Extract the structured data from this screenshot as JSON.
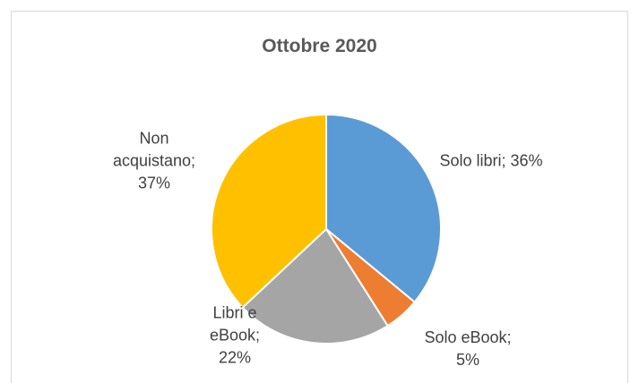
{
  "chart_data": {
    "type": "pie",
    "title": "Ottobre 2020",
    "values": [
      36,
      5,
      22,
      37
    ],
    "value_labels": [
      "Solo libri; 36%",
      "Solo eBook; 5%",
      "Libri e eBook; 22%",
      "Non acquistano; 37%"
    ],
    "colors": [
      "#5b9bd5",
      "#ed7d31",
      "#a5a5a5",
      "#ffc000"
    ]
  }
}
